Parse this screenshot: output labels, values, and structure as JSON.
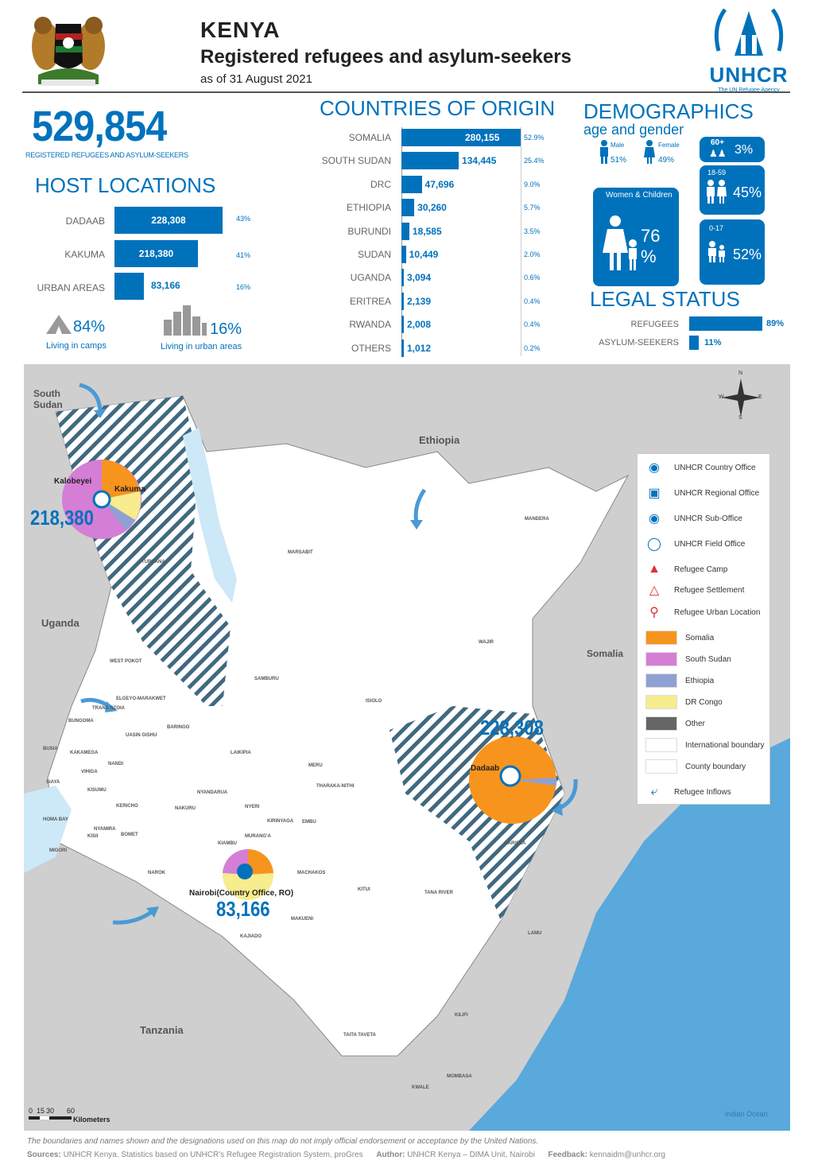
{
  "header": {
    "country": "KENYA",
    "title": "Registered refugees and asylum-seekers",
    "date": "as of 31 August 2021",
    "org": "UNHCR",
    "org_tagline": "The UN Refugee Agency"
  },
  "total": {
    "value": "529,854",
    "caption": "REGISTERED REFUGEES AND ASYLUM-SEEKERS"
  },
  "host_locations": {
    "title": "HOST LOCATIONS",
    "items": [
      {
        "label": "DADAAB",
        "value": "228,308",
        "pct": "43%",
        "share": 0.43
      },
      {
        "label": "KAKUMA",
        "value": "218,380",
        "pct": "41%",
        "share": 0.41
      },
      {
        "label": "URBAN AREAS",
        "value": "83,166",
        "pct": "16%",
        "share": 0.16
      }
    ],
    "camps_pct": "84%",
    "camps_label": "Living in camps",
    "urban_pct": "16%",
    "urban_label": "Living in urban areas"
  },
  "origin": {
    "title": "COUNTRIES OF ORIGIN",
    "items": [
      {
        "label": "SOMALIA",
        "value": "280,155",
        "pct": "52.9%",
        "share": 0.529
      },
      {
        "label": "SOUTH SUDAN",
        "value": "134,445",
        "pct": "25.4%",
        "share": 0.254
      },
      {
        "label": "DRC",
        "value": "47,696",
        "pct": "9.0%",
        "share": 0.09
      },
      {
        "label": "ETHIOPIA",
        "value": "30,260",
        "pct": "5.7%",
        "share": 0.057
      },
      {
        "label": "BURUNDI",
        "value": "18,585",
        "pct": "3.5%",
        "share": 0.035
      },
      {
        "label": "SUDAN",
        "value": "10,449",
        "pct": "2.0%",
        "share": 0.02
      },
      {
        "label": "UGANDA",
        "value": "3,094",
        "pct": "0.6%",
        "share": 0.006
      },
      {
        "label": "ERITREA",
        "value": "2,139",
        "pct": "0.4%",
        "share": 0.004
      },
      {
        "label": "RWANDA",
        "value": "2,008",
        "pct": "0.4%",
        "share": 0.004
      },
      {
        "label": "OTHERS",
        "value": "1,012",
        "pct": "0.2%",
        "share": 0.002
      }
    ]
  },
  "demographics": {
    "title": "DEMOGRAPHICS",
    "subtitle": "age and gender",
    "male_label": "Male",
    "male_pct": "51%",
    "female_label": "Female",
    "female_pct": "49%",
    "women_children_label": "Women & Children",
    "women_children_pct": "76 %",
    "age_groups": [
      {
        "label": "60+",
        "pct": "3%"
      },
      {
        "label": "18-59",
        "pct": "45%"
      },
      {
        "label": "0-17",
        "pct": "52%"
      }
    ]
  },
  "legal_status": {
    "title": "LEGAL STATUS",
    "items": [
      {
        "label": "REFUGEES",
        "pct": "89%",
        "share": 0.89
      },
      {
        "label": "ASYLUM-SEEKERS",
        "pct": "11%",
        "share": 0.11
      }
    ]
  },
  "map": {
    "countries": [
      "South Sudan",
      "Ethiopia",
      "Uganda",
      "Somalia",
      "Tanzania"
    ],
    "ocean": "Indian Ocean",
    "sites": [
      {
        "name": "Kalobeyei",
        "value": ""
      },
      {
        "name": "Kakuma",
        "value": "218,380"
      },
      {
        "name": "Dadaab",
        "value": "228,308"
      },
      {
        "name": "Nairobi(Country Office, RO)",
        "value": "83,166"
      }
    ],
    "counties": [
      "TURKANA",
      "MARSABIT",
      "MANDERA",
      "WAJIR",
      "SAMBURU",
      "ISIOLO",
      "WEST POKOT",
      "ELGEYO-MARAKWET",
      "BUNGOMA",
      "TRANS NZOIA",
      "BARINGO",
      "UASIN GISHU",
      "LAIKIPIA",
      "MERU",
      "THARAKA-NITHI",
      "BUSIA",
      "KAKAMEGA",
      "VIHIGA",
      "NANDI",
      "SIAYA",
      "KISUMU",
      "KERICHO",
      "NYANDARUA",
      "NYERI",
      "KIRINYAGA",
      "EMBU",
      "HOMA BAY",
      "MIGORI",
      "KISII",
      "NYAMIRA",
      "BOMET",
      "NAKURU",
      "NAROK",
      "KIAMBU",
      "MURANG'A",
      "MACHAKOS",
      "KITUI",
      "GARISSA",
      "TANA RIVER",
      "LAMU",
      "MAKUENI",
      "KAJIADO",
      "KILIFI",
      "TAITA TAVETA",
      "KWALE",
      "MOMBASA"
    ],
    "scale": {
      "ticks": [
        "0",
        "15",
        "30",
        "60"
      ],
      "unit": "Kilometers"
    },
    "compass": {
      "n": "N",
      "s": "S",
      "e": "E",
      "w": "W"
    },
    "legend": [
      {
        "label": "UNHCR Country Office",
        "icon": "country-office-icon"
      },
      {
        "label": "UNHCR Regional Office",
        "icon": "regional-office-icon"
      },
      {
        "label": "UNHCR Sub-Office",
        "icon": "sub-office-icon"
      },
      {
        "label": "UNHCR Field Office",
        "icon": "field-office-icon"
      },
      {
        "label": "Refugee Camp",
        "icon": "refugee-camp-icon"
      },
      {
        "label": "Refugee Settlement",
        "icon": "refugee-settlement-icon"
      },
      {
        "label": "Refugee Urban Location",
        "icon": "urban-location-icon"
      },
      {
        "label": "Somalia",
        "color": "#f7941d"
      },
      {
        "label": "South Sudan",
        "color": "#d57ed6"
      },
      {
        "label": "Ethiopia",
        "color": "#8fa1d2"
      },
      {
        "label": "DR Congo",
        "color": "#f7ec8e"
      },
      {
        "label": "Other",
        "color": "#666666"
      },
      {
        "label": "International boundary",
        "color": "#ffffff"
      },
      {
        "label": "County boundary",
        "color": "#ffffff"
      },
      {
        "label": "Refugee Inflows",
        "icon": "inflow-arrow-icon"
      }
    ]
  },
  "footer": {
    "disclaimer": "The boundaries and names shown and the designations used on this map do not imply official endorsement or acceptance by the United Nations.",
    "sources_label": "Sources:",
    "sources": "UNHCR Kenya. Statistics based on UNHCR's Refugee Registration System, proGres",
    "author_label": "Author:",
    "author": "UNHCR Kenya – DIMA Unit, Nairobi",
    "feedback_label": "Feedback:",
    "feedback": "kennaidm@unhcr.org"
  },
  "colors": {
    "accent": "#0072bc",
    "somalia": "#f7941d",
    "south_sudan": "#d57ed6",
    "ethiopia": "#8fa1d2",
    "drc": "#f7ec8e",
    "ocean": "#5aa9dc",
    "land": "#ffffff",
    "neighbour": "#cfcfcf"
  }
}
